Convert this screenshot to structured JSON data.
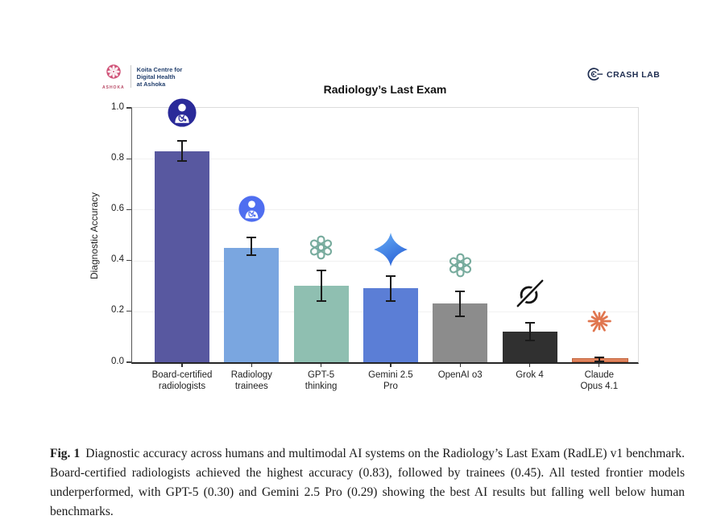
{
  "header": {
    "ashoka_logo": {
      "brand": "ASHOKA",
      "lines": [
        "Koita Centre for",
        "Digital Health",
        "at Ashoka"
      ],
      "accent_color": "#cf5076",
      "text_color": "#23406e"
    },
    "crashlab_logo": {
      "label": "CRASH LAB",
      "color": "#1e2d50"
    }
  },
  "chart_data": {
    "type": "bar",
    "title": "Radiology’s Last Exam",
    "xlabel": "",
    "ylabel": "Diagnostic Accuracy",
    "ylim": [
      0.0,
      1.0
    ],
    "yticks": [
      "0.0",
      "0.2",
      "0.4",
      "0.6",
      "0.8",
      "1.0"
    ],
    "grid": "faint horizontal gridlines at 0.2 intervals",
    "legend": "none",
    "categories": [
      "Board-certified radiologists",
      "Radiology trainees",
      "GPT-5 thinking",
      "Gemini 2.5 Pro",
      "OpenAI o3",
      "Grok 4",
      "Claude Opus 4.1"
    ],
    "values": [
      0.83,
      0.45,
      0.3,
      0.29,
      0.23,
      0.12,
      0.01
    ],
    "bars": [
      {
        "label_lines": [
          "Board-certified",
          "radiologists"
        ],
        "value": 0.83,
        "err_low": 0.79,
        "err_high": 0.87,
        "color": "#5858a0",
        "icon": "doctor-dark-icon"
      },
      {
        "label_lines": [
          "Radiology",
          "trainees"
        ],
        "value": 0.45,
        "err_low": 0.42,
        "err_high": 0.49,
        "color": "#7aa6e0",
        "icon": "doctor-blue-icon"
      },
      {
        "label_lines": [
          "GPT-5",
          "thinking"
        ],
        "value": 0.3,
        "err_low": 0.24,
        "err_high": 0.36,
        "color": "#8fbfb1",
        "icon": "openai-icon"
      },
      {
        "label_lines": [
          "Gemini 2.5",
          "Pro"
        ],
        "value": 0.29,
        "err_low": 0.24,
        "err_high": 0.34,
        "color": "#5b7ed6",
        "icon": "gemini-icon"
      },
      {
        "label_lines": [
          "OpenAI o3"
        ],
        "value": 0.23,
        "err_low": 0.18,
        "err_high": 0.28,
        "color": "#8c8c8c",
        "icon": "openai-icon"
      },
      {
        "label_lines": [
          "Grok 4"
        ],
        "value": 0.12,
        "err_low": 0.085,
        "err_high": 0.155,
        "color": "#303030",
        "icon": "grok-icon"
      },
      {
        "label_lines": [
          "Claude",
          "Opus 4.1"
        ],
        "value": 0.01,
        "err_low": 0.004,
        "err_high": 0.018,
        "color": "#e0845e",
        "icon": "claude-icon",
        "edge_color": "#c4663f"
      }
    ],
    "icon_colors": {
      "doctor_dark": "#2a2a99",
      "doctor_blue": "#4f6ef0",
      "openai": "#77ab9d",
      "gemini_top": "#6ab2f8",
      "gemini_bottom": "#2e66d8",
      "grok": "#141414",
      "claude": "#e0764f"
    }
  },
  "caption": {
    "fig_label": "Fig. 1",
    "text": "Diagnostic accuracy across humans and multimodal AI systems on the Radiology’s Last Exam (RadLE) v1 benchmark. Board-certified radiologists achieved the highest accuracy (0.83), followed by trainees (0.45). All tested frontier models underperformed, with GPT-5 (0.30) and Gemini 2.5 Pro (0.29) showing the best AI results but falling well below human benchmarks."
  }
}
